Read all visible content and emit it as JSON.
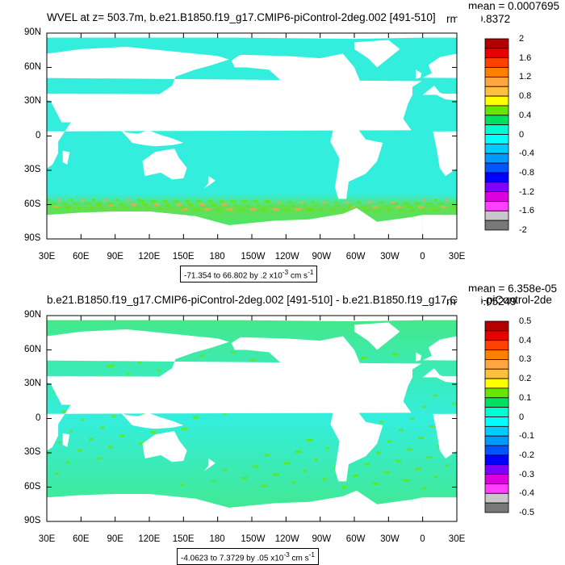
{
  "panels": [
    {
      "title": "WVEL at z= 503.7m, b.e21.B1850.f19_g17.CMIP6-piControl-2deg.002 [491-510]",
      "stats": {
        "mean": "mean = 0.0007695",
        "rms": "rms = 0.8372"
      },
      "lat_ticks": [
        "90N",
        "60N",
        "30N",
        "0",
        "30S",
        "60S",
        "90S"
      ],
      "lon_ticks": [
        "30E",
        "60E",
        "90E",
        "120E",
        "150E",
        "180",
        "150W",
        "120W",
        "90W",
        "60W",
        "30W",
        "0",
        "30E"
      ],
      "legend_labels": [
        "2",
        "1.6",
        "1.2",
        "0.8",
        "0.4",
        "0",
        "-0.4",
        "-0.8",
        "-1.2",
        "-1.6",
        "-2"
      ],
      "legend_colors": [
        "#b30000",
        "#e60000",
        "#ff4000",
        "#ff8000",
        "#ffa640",
        "#ffc040",
        "#ffff00",
        "#66e600",
        "#00e060",
        "#00ffd0",
        "#00ffff",
        "#00ccff",
        "#0099ff",
        "#0055ff",
        "#0000ff",
        "#7f00ff",
        "#dd00dd",
        "#ff40ff",
        "#c8c8c8",
        "#787878"
      ],
      "info": "-71.354 to 66.802 by .2 x10",
      "info_exp": "-3",
      "info_unit": " cm s",
      "info_unit_exp": "-1"
    },
    {
      "title": "b.e21.B1850.f19_g17.CMIP6-piControl-2deg.002 [491-510] - b.e21.B1850.f19_g17.CMIP6-piControl-2de",
      "stats": {
        "mean": "mean = 6.358e-05",
        "rms": "rms = 0.05249"
      },
      "lat_ticks": [
        "90N",
        "60N",
        "30N",
        "0",
        "30S",
        "60S",
        "90S"
      ],
      "lon_ticks": [
        "30E",
        "60E",
        "90E",
        "120E",
        "150E",
        "180",
        "150W",
        "120W",
        "90W",
        "60W",
        "30W",
        "0",
        "30E"
      ],
      "legend_labels": [
        "0.5",
        "0.4",
        "0.3",
        "0.2",
        "0.1",
        "0",
        "-0.1",
        "-0.2",
        "-0.3",
        "-0.4",
        "-0.5"
      ],
      "legend_colors": [
        "#b30000",
        "#e60000",
        "#ff4000",
        "#ff8000",
        "#ffa640",
        "#ffc040",
        "#ffff00",
        "#66e600",
        "#00e060",
        "#00ffd0",
        "#00ffff",
        "#00ccff",
        "#0099ff",
        "#0055ff",
        "#0000ff",
        "#7f00ff",
        "#dd00dd",
        "#ff40ff",
        "#c8c8c8",
        "#787878"
      ],
      "info": "-4.0623 to 7.3729 by .05 x10",
      "info_exp": "-3",
      "info_unit": " cm s",
      "info_unit_exp": "-1"
    }
  ],
  "colors": {
    "ocean_top": "#33eedd",
    "ocean_bottom": "#44e888",
    "land": "#ffffff",
    "southern_top": "#66dd55",
    "southern_bottom": "#33ee77"
  }
}
